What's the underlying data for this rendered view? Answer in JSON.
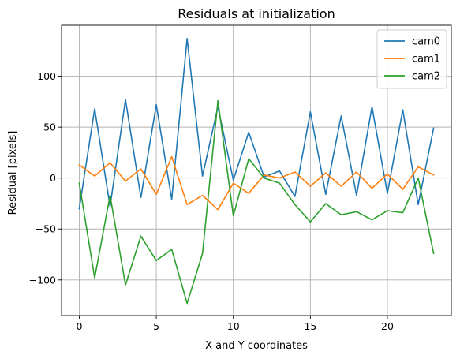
{
  "chart_data": {
    "type": "line",
    "title": "Residuals at initialization",
    "xlabel": "X and Y coordinates",
    "ylabel": "Residual [pixels]",
    "xlim": [
      -1.15,
      24.15
    ],
    "ylim": [
      -135,
      150
    ],
    "xticks": [
      0,
      5,
      10,
      15,
      20
    ],
    "yticks": [
      -100,
      -50,
      0,
      50,
      100
    ],
    "grid": true,
    "legend_position": "top-right",
    "x": [
      0,
      1,
      2,
      3,
      4,
      5,
      6,
      7,
      8,
      9,
      10,
      11,
      12,
      13,
      14,
      15,
      16,
      17,
      18,
      19,
      20,
      21,
      22,
      23
    ],
    "series": [
      {
        "name": "cam0",
        "color": "#1f77b4",
        "values": [
          -30,
          68,
          -28,
          77,
          -19,
          72,
          -21,
          137,
          2,
          70,
          -2,
          45,
          1,
          7,
          -18,
          65,
          -16,
          61,
          -17,
          70,
          -15,
          67,
          -26,
          49
        ]
      },
      {
        "name": "cam1",
        "color": "#ff7f0e",
        "values": [
          13,
          2,
          15,
          -3,
          9,
          -16,
          21,
          -26,
          -17,
          -31,
          -5,
          -15,
          3,
          0,
          6,
          -8,
          5,
          -8,
          6,
          -10,
          4,
          -11,
          11,
          3
        ]
      },
      {
        "name": "cam2",
        "color": "#2ca02c",
        "values": [
          -5,
          -98,
          -17,
          -105,
          -57,
          -81,
          -70,
          -123,
          -74,
          76,
          -37,
          19,
          0,
          -5,
          -26,
          -43,
          -25,
          -36,
          -33,
          -41,
          -32,
          -34,
          0,
          -74
        ]
      }
    ]
  }
}
